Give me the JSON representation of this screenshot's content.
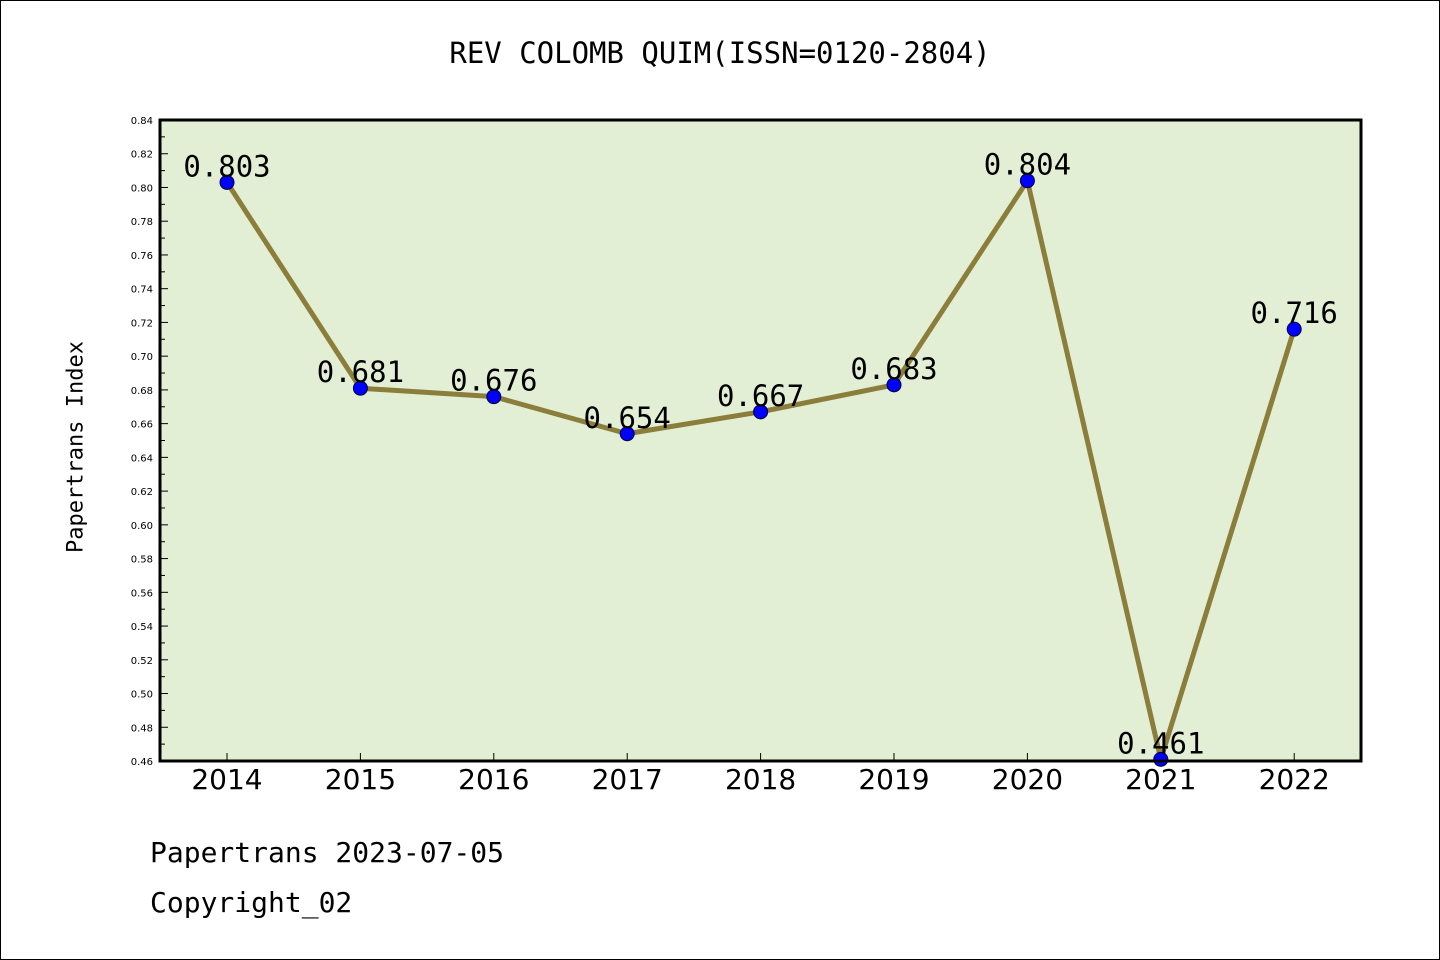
{
  "chart_data": {
    "type": "line",
    "title": "REV COLOMB QUIM(ISSN=0120-2804)",
    "xlabel": "",
    "ylabel": "Papertrans Index",
    "categories": [
      "2014",
      "2015",
      "2016",
      "2017",
      "2018",
      "2019",
      "2020",
      "2021",
      "2022"
    ],
    "series": [
      {
        "values": [
          0.803,
          0.681,
          0.676,
          0.654,
          0.667,
          0.683,
          0.804,
          0.461,
          0.716
        ],
        "labels": [
          "0.803",
          "0.681",
          "0.676",
          "0.654",
          "0.667",
          "0.683",
          "0.804",
          "0.461",
          "0.716"
        ]
      }
    ],
    "ylim": [
      0.46,
      0.84
    ],
    "yticks": [
      "0.46",
      "0.48",
      "0.50",
      "0.52",
      "0.54",
      "0.56",
      "0.58",
      "0.60",
      "0.62",
      "0.64",
      "0.66",
      "0.68",
      "0.70",
      "0.72",
      "0.74",
      "0.76",
      "0.78",
      "0.80",
      "0.82",
      "0.84"
    ],
    "grid": false,
    "legend": "none"
  },
  "colors": {
    "plot_background": "#e2efd5",
    "line": "#8b7d3a",
    "marker": "#0000ff",
    "axis": "#000000"
  },
  "footer": {
    "line1": "Papertrans 2023-07-05",
    "line2": "Copyright_02"
  }
}
